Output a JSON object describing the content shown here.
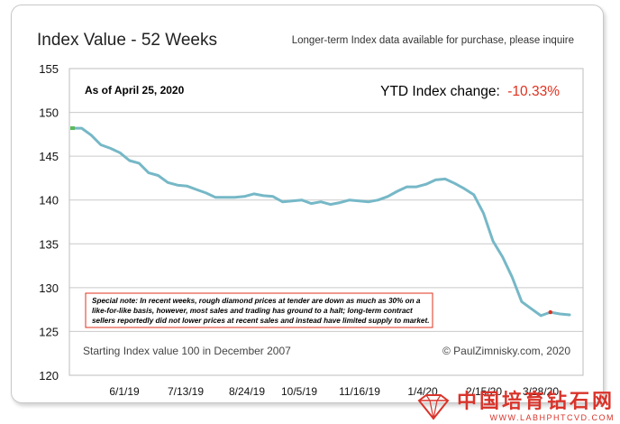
{
  "header": {
    "title": "Index Value - 52 Weeks",
    "subtitle": "Longer-term Index data available for purchase, please inquire"
  },
  "as_of": "As of April 25, 2020",
  "ytd": {
    "label": "YTD Index change:",
    "value": "-10.33%",
    "value_color": "#e0301e"
  },
  "note": {
    "lines": [
      "Special note: In recent weeks, rough diamond prices at tender are down as much as 30% on a",
      "like-for-like basis, however, most sales and trading has ground to a halt; long-term contract",
      "sellers reportedly did not lower prices at recent sales and instead have limited supply to market."
    ],
    "border_color": "#e0301e"
  },
  "footer": {
    "left": "Starting Index value 100 in December 2007",
    "right": "© PaulZimnisky.com, 2020"
  },
  "watermark": {
    "text": "中国培育钻石网",
    "url": "WWW.LABHPHTCVD.COM",
    "color": "#d9342b"
  },
  "chart_data": {
    "type": "line",
    "title": "Index Value - 52 Weeks",
    "ylim": [
      120,
      155
    ],
    "yticks": [
      155,
      150,
      145,
      140,
      135,
      130,
      125,
      120
    ],
    "xtick_labels": [
      "6/1/19",
      "7/13/19",
      "8/24/19",
      "10/5/19",
      "11/16/19",
      "1/4/20",
      "2/15/20",
      "3/28/20"
    ],
    "grid": true,
    "line_color": "#76b8c7",
    "start_marker_color": "#5cb85c",
    "end_marker_color": "#e0301e",
    "values": [
      148.2,
      148.2,
      147.4,
      146.3,
      145.9,
      145.4,
      144.5,
      144.2,
      143.1,
      142.8,
      142.0,
      141.7,
      141.6,
      141.2,
      140.8,
      140.3,
      140.3,
      140.3,
      140.4,
      140.7,
      140.5,
      140.4,
      139.8,
      139.9,
      140.0,
      139.6,
      139.8,
      139.5,
      139.7,
      140.0,
      139.9,
      139.8,
      140.0,
      140.4,
      141.0,
      141.5,
      141.5,
      141.8,
      142.3,
      142.4,
      141.9,
      141.3,
      140.6,
      138.5,
      135.3,
      133.5,
      131.2,
      128.4,
      127.6,
      126.8,
      127.2,
      127.0,
      126.9
    ]
  }
}
